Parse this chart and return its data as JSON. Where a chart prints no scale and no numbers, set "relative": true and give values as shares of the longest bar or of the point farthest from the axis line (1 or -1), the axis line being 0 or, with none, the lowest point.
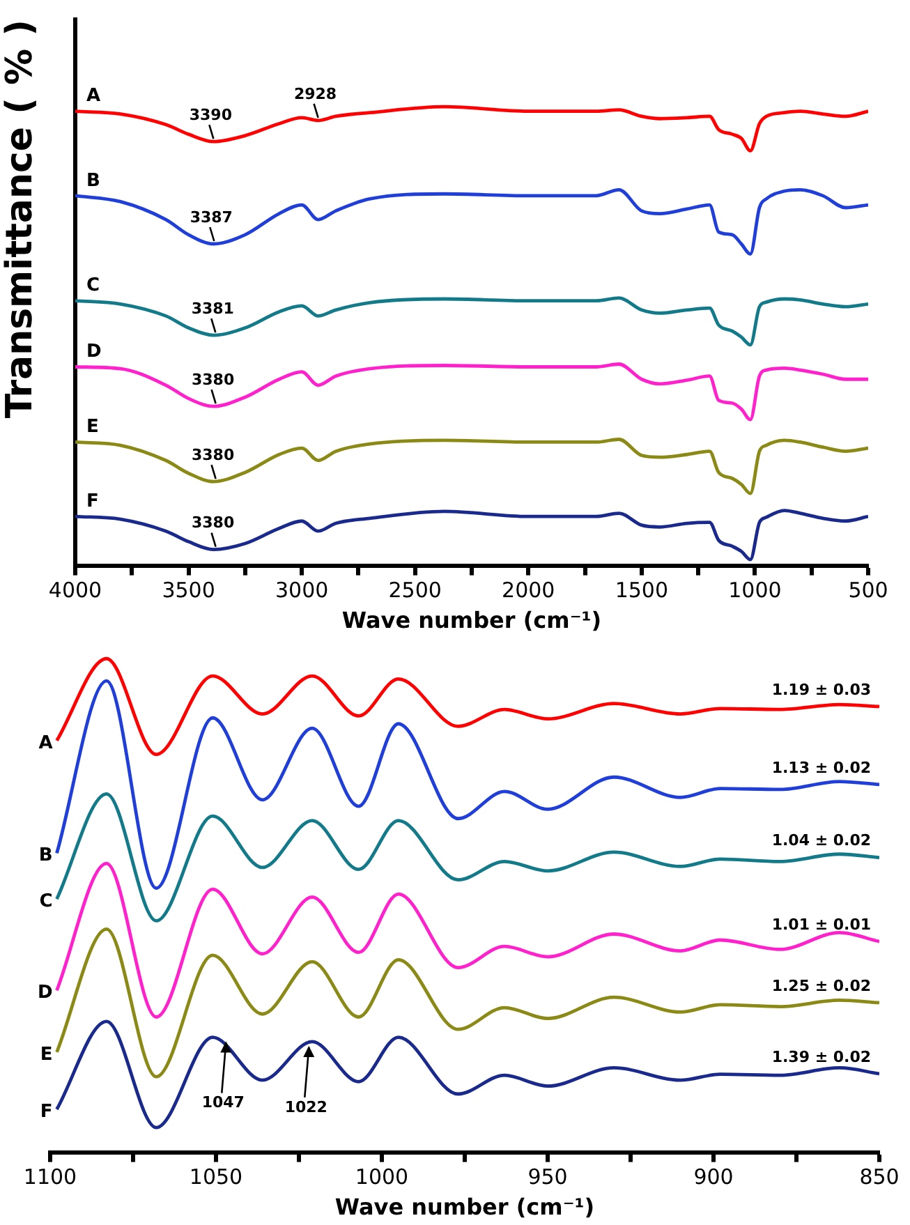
{
  "chart_data": [
    {
      "type": "line",
      "relative": true,
      "ylabel": "Transmittance ( % )",
      "xlabel": "Wave number (cm⁻¹)",
      "xlim": [
        4000,
        500
      ],
      "xticks": [
        4000,
        {
          "value": 3750,
          "label": null
        },
        3500,
        {
          "value": 3250,
          "label": null
        },
        3000,
        {
          "value": 2750,
          "label": null
        },
        2500,
        {
          "value": 2250,
          "label": null
        },
        2000,
        {
          "value": 1750,
          "label": null
        },
        1500,
        {
          "value": 1250,
          "label": null
        },
        1000,
        {
          "value": 750,
          "label": null
        },
        500
      ],
      "legend": false,
      "marker": "none",
      "x": [
        4000,
        3800,
        3600,
        3500,
        3390,
        3250,
        3100,
        3000,
        2928,
        2850,
        2700,
        2370,
        2000,
        1700,
        1600,
        1500,
        1420,
        1300,
        1200,
        1160,
        1100,
        1060,
        1020,
        980,
        950,
        870,
        800,
        700,
        600,
        500
      ],
      "series": [
        {
          "name": "A",
          "color": "#ff0000",
          "values": [
            0.99,
            0.984,
            0.961,
            0.94,
            0.924,
            0.937,
            0.963,
            0.976,
            0.97,
            0.979,
            0.987,
            1.0,
            0.99,
            0.99,
            0.993,
            0.979,
            0.974,
            0.976,
            0.979,
            0.95,
            0.94,
            0.931,
            0.904,
            0.963,
            0.979,
            0.987,
            0.99,
            0.984,
            0.979,
            0.99
          ]
        },
        {
          "name": "B",
          "color": "#1f3fd8",
          "values": [
            0.806,
            0.793,
            0.754,
            0.721,
            0.701,
            0.721,
            0.767,
            0.786,
            0.754,
            0.773,
            0.799,
            0.81,
            0.806,
            0.806,
            0.819,
            0.773,
            0.767,
            0.777,
            0.786,
            0.727,
            0.721,
            0.701,
            0.679,
            0.78,
            0.799,
            0.816,
            0.819,
            0.806,
            0.78,
            0.786
          ]
        },
        {
          "name": "C",
          "color": "#137a8a",
          "values": [
            0.577,
            0.57,
            0.544,
            0.518,
            0.502,
            0.518,
            0.553,
            0.566,
            0.544,
            0.557,
            0.573,
            0.581,
            0.577,
            0.577,
            0.583,
            0.557,
            0.55,
            0.557,
            0.561,
            0.524,
            0.511,
            0.498,
            0.481,
            0.564,
            0.574,
            0.581,
            0.579,
            0.57,
            0.564,
            0.57
          ]
        },
        {
          "name": "D",
          "color": "#ff22cc",
          "values": [
            0.433,
            0.429,
            0.393,
            0.364,
            0.347,
            0.367,
            0.406,
            0.422,
            0.393,
            0.413,
            0.429,
            0.436,
            0.433,
            0.433,
            0.439,
            0.406,
            0.396,
            0.404,
            0.413,
            0.36,
            0.354,
            0.341,
            0.318,
            0.413,
            0.426,
            0.43,
            0.426,
            0.417,
            0.406,
            0.406
          ]
        },
        {
          "name": "E",
          "color": "#8b8a16",
          "values": [
            0.269,
            0.262,
            0.229,
            0.201,
            0.183,
            0.203,
            0.242,
            0.256,
            0.229,
            0.249,
            0.265,
            0.273,
            0.269,
            0.269,
            0.275,
            0.24,
            0.236,
            0.242,
            0.249,
            0.203,
            0.19,
            0.177,
            0.157,
            0.249,
            0.262,
            0.273,
            0.269,
            0.258,
            0.249,
            0.256
          ]
        },
        {
          "name": "F",
          "color": "#1a2a8c",
          "values": [
            0.107,
            0.101,
            0.075,
            0.052,
            0.035,
            0.048,
            0.081,
            0.097,
            0.075,
            0.092,
            0.103,
            0.118,
            0.107,
            0.107,
            0.114,
            0.088,
            0.084,
            0.092,
            0.094,
            0.055,
            0.042,
            0.031,
            0.013,
            0.094,
            0.105,
            0.12,
            0.114,
            0.103,
            0.097,
            0.107
          ]
        }
      ],
      "annotations": [
        {
          "text": "3390",
          "x": 3390,
          "y": 0.924
        },
        {
          "text": "2928",
          "x": 2928,
          "y": 0.97
        },
        {
          "text": "3387",
          "x": 3387,
          "y": 0.701
        },
        {
          "text": "3381",
          "x": 3381,
          "y": 0.502
        },
        {
          "text": "3380",
          "x": 3380,
          "y": 0.347
        },
        {
          "text": "3380",
          "x": 3380,
          "y": 0.183
        },
        {
          "text": "3380",
          "x": 3380,
          "y": 0.035
        }
      ]
    },
    {
      "type": "line",
      "relative": true,
      "xlabel": "Wave number (cm⁻¹)",
      "xlim": [
        1100,
        850
      ],
      "xticks": [
        1100,
        {
          "value": 1075,
          "label": null
        },
        1050,
        {
          "value": 1025,
          "label": null
        },
        1000,
        {
          "value": 975,
          "label": null
        },
        950,
        {
          "value": 925,
          "label": null
        },
        900,
        {
          "value": 875,
          "label": null
        },
        850
      ],
      "legend": false,
      "marker": "none",
      "x": [
        1098,
        1083,
        1068,
        1051,
        1036,
        1021,
        1007,
        995,
        977,
        963,
        950,
        930,
        910,
        898,
        880,
        862,
        850
      ],
      "series": [
        {
          "name": "A",
          "color": "#ff0000",
          "values": [
            0.834,
            1.0,
            0.806,
            0.965,
            0.888,
            0.965,
            0.884,
            0.959,
            0.863,
            0.897,
            0.878,
            0.909,
            0.888,
            0.899,
            0.897,
            0.907,
            0.903
          ]
        },
        {
          "name": "B",
          "color": "#1f3fd8",
          "values": [
            0.606,
            0.955,
            0.535,
            0.88,
            0.714,
            0.859,
            0.701,
            0.868,
            0.676,
            0.731,
            0.695,
            0.76,
            0.719,
            0.737,
            0.735,
            0.751,
            0.745
          ]
        },
        {
          "name": "C",
          "color": "#137a8a",
          "values": [
            0.513,
            0.726,
            0.469,
            0.681,
            0.577,
            0.672,
            0.573,
            0.672,
            0.552,
            0.589,
            0.57,
            0.608,
            0.579,
            0.594,
            0.589,
            0.604,
            0.597
          ]
        },
        {
          "name": "D",
          "color": "#ff22cc",
          "values": [
            0.328,
            0.585,
            0.274,
            0.533,
            0.402,
            0.517,
            0.405,
            0.523,
            0.374,
            0.417,
            0.396,
            0.442,
            0.408,
            0.43,
            0.411,
            0.445,
            0.427
          ]
        },
        {
          "name": "E",
          "color": "#8b8a16",
          "values": [
            0.203,
            0.452,
            0.153,
            0.399,
            0.28,
            0.386,
            0.274,
            0.39,
            0.249,
            0.293,
            0.271,
            0.314,
            0.284,
            0.299,
            0.295,
            0.308,
            0.303
          ]
        },
        {
          "name": "F",
          "color": "#1a2a8c",
          "values": [
            0.087,
            0.265,
            0.05,
            0.233,
            0.146,
            0.224,
            0.143,
            0.233,
            0.118,
            0.156,
            0.134,
            0.171,
            0.146,
            0.158,
            0.156,
            0.171,
            0.159
          ]
        }
      ],
      "annotations": [
        "1.19 ± 0.03",
        "1.13 ± 0.02",
        "1.04 ± 0.02",
        "1.01 ± 0.01",
        "1.25 ± 0.02",
        "1.39 ± 0.02",
        {
          "text": "1047",
          "x": 1047,
          "y": 0.233
        },
        {
          "text": "1022",
          "x": 1022,
          "y": 0.224
        }
      ]
    }
  ]
}
